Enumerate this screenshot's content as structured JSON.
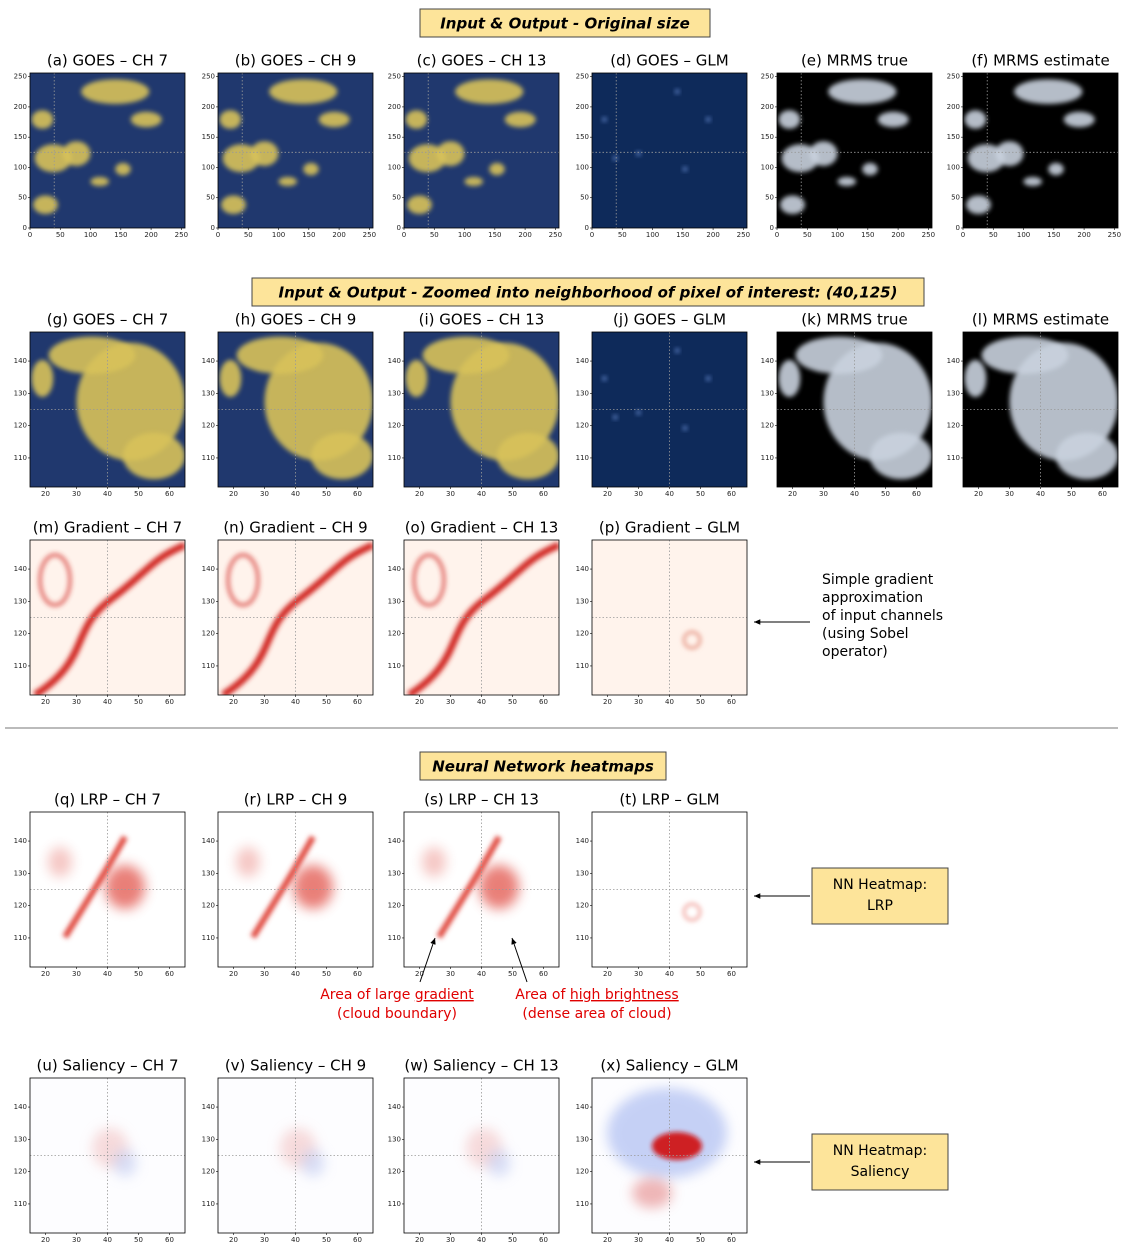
{
  "pixel_of_interest": {
    "x": 40,
    "y": 125
  },
  "axes": {
    "full": {
      "xlim": [
        0,
        256
      ],
      "ylim": [
        0,
        256
      ],
      "xticks": [
        0,
        50,
        100,
        150,
        200,
        250
      ],
      "yticks": [
        0,
        50,
        100,
        150,
        200,
        250
      ]
    },
    "zoom": {
      "xlim": [
        15,
        65
      ],
      "ylim": [
        101,
        149
      ],
      "xticks": [
        20,
        30,
        40,
        50,
        60
      ],
      "yticks": [
        110,
        120,
        130,
        140
      ]
    }
  },
  "banners": [
    "Input & Output - Original size",
    "Input & Output - Zoomed into neighborhood of pixel of interest: (40,125)",
    "Neural Network heatmaps"
  ],
  "rows": [
    {
      "axes": "full",
      "panels": [
        {
          "title": "(a) GOES – CH 7",
          "cmap": "goes"
        },
        {
          "title": "(b) GOES – CH 9",
          "cmap": "goes"
        },
        {
          "title": "(c) GOES – CH 13",
          "cmap": "goes"
        },
        {
          "title": "(d) GOES – GLM",
          "cmap": "glm"
        },
        {
          "title": "(e) MRMS true",
          "cmap": "mrms"
        },
        {
          "title": "(f) MRMS estimate",
          "cmap": "mrms"
        }
      ]
    },
    {
      "axes": "zoom",
      "panels": [
        {
          "title": "(g) GOES – CH 7",
          "cmap": "goes"
        },
        {
          "title": "(h) GOES – CH 9",
          "cmap": "goes"
        },
        {
          "title": "(i) GOES – CH 13",
          "cmap": "goes"
        },
        {
          "title": "(j) GOES – GLM",
          "cmap": "glm"
        },
        {
          "title": "(k) MRMS true",
          "cmap": "mrms"
        },
        {
          "title": "(l) MRMS estimate",
          "cmap": "mrms"
        }
      ]
    },
    {
      "axes": "zoom",
      "panels": [
        {
          "title": "(m) Gradient – CH 7",
          "cmap": "grad"
        },
        {
          "title": "(n) Gradient – CH 9",
          "cmap": "grad"
        },
        {
          "title": "(o) Gradient – CH 13",
          "cmap": "grad"
        },
        {
          "title": "(p) Gradient – GLM",
          "cmap": "gradglm"
        }
      ]
    },
    {
      "axes": "zoom",
      "panels": [
        {
          "title": "(q) LRP – CH 7",
          "cmap": "lrp"
        },
        {
          "title": "(r) LRP – CH 9",
          "cmap": "lrp"
        },
        {
          "title": "(s) LRP – CH 13",
          "cmap": "lrp"
        },
        {
          "title": "(t) LRP – GLM",
          "cmap": "lrpglm"
        }
      ]
    },
    {
      "axes": "zoom",
      "panels": [
        {
          "title": "(u) Saliency – CH 7",
          "cmap": "sal"
        },
        {
          "title": "(v) Saliency – CH 9",
          "cmap": "sal"
        },
        {
          "title": "(w) Saliency – CH 13",
          "cmap": "sal"
        },
        {
          "title": "(x) Saliency – GLM",
          "cmap": "salglm"
        }
      ]
    }
  ],
  "gradient_note": [
    "Simple gradient",
    "approximation",
    "of input channels",
    "(using Sobel",
    "operator)"
  ],
  "lrp_box": [
    "NN Heatmap:",
    "LRP"
  ],
  "saliency_box": [
    "NN Heatmap:",
    "Saliency"
  ],
  "callouts": [
    {
      "prefix": "Area of large ",
      "underlined": "gradient",
      "line2": "(cloud boundary)"
    },
    {
      "prefix": "Area of ",
      "underlined": "high brightness",
      "line2": "(dense area of cloud)"
    }
  ]
}
